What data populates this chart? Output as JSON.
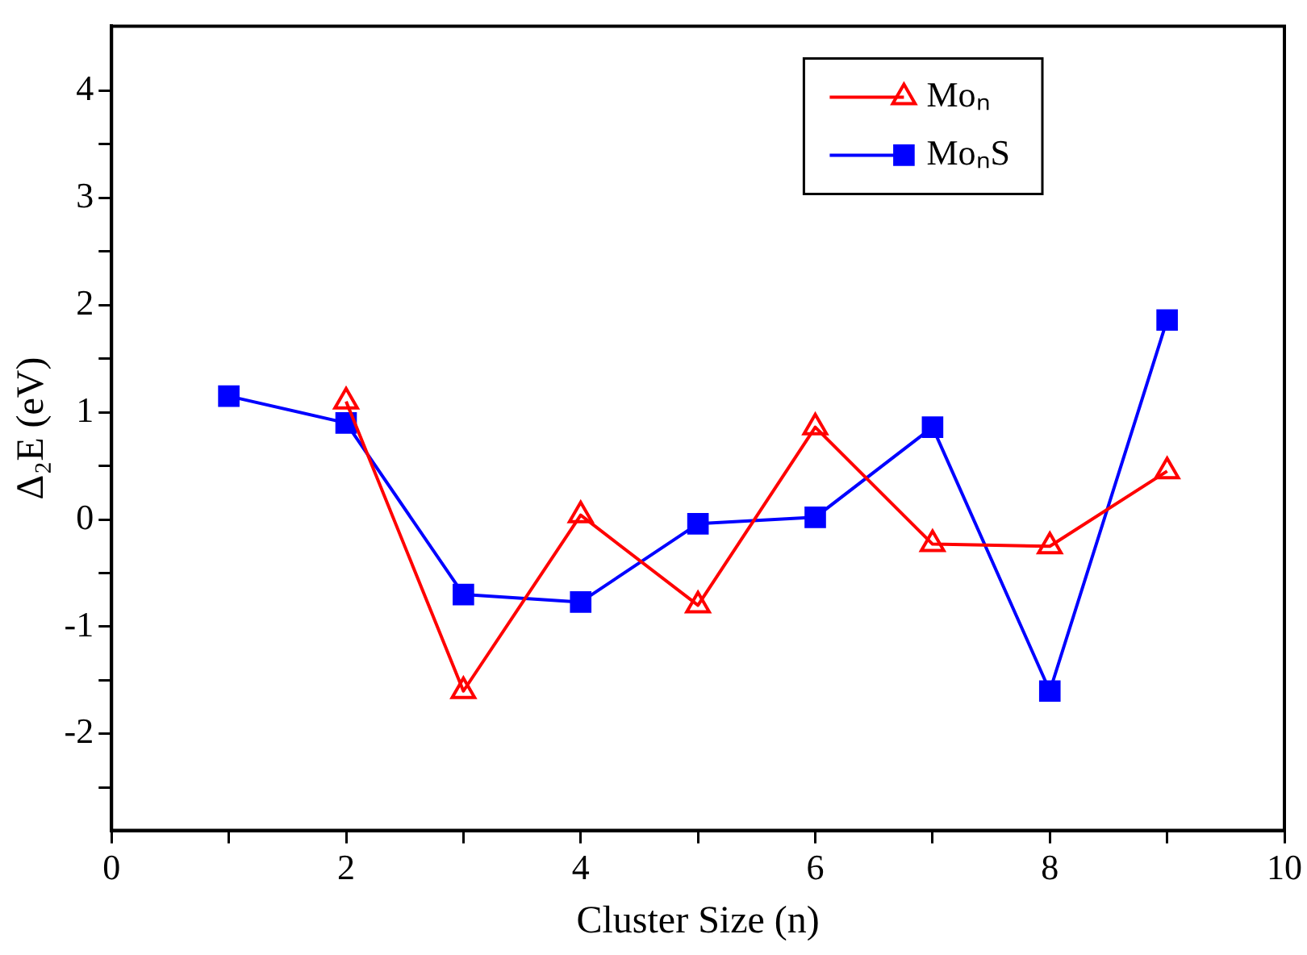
{
  "chart_data": {
    "type": "line",
    "xlabel": "Cluster Size (n)",
    "ylabel": "Δ₂E (eV)",
    "x": [
      1,
      2,
      3,
      4,
      5,
      6,
      7,
      8,
      9
    ],
    "series": [
      {
        "name": "Moₙ",
        "color": "#ff0000",
        "marker": "triangle",
        "values": [
          null,
          1.1,
          -1.6,
          0.04,
          -0.8,
          0.86,
          -0.23,
          -0.25,
          0.45
        ]
      },
      {
        "name": "MoₙS",
        "color": "#0000ff",
        "marker": "square",
        "values": [
          1.15,
          0.9,
          -0.7,
          -0.77,
          -0.04,
          0.02,
          0.86,
          -1.6,
          1.86
        ]
      }
    ],
    "xlim": [
      0,
      10
    ],
    "xticks": [
      0,
      {
        "value": 1,
        "label": null
      },
      2,
      {
        "value": 3,
        "label": null
      },
      4,
      {
        "value": 5,
        "label": null
      },
      6,
      {
        "value": 7,
        "label": null
      },
      8,
      {
        "value": 9,
        "label": null
      },
      10
    ],
    "ylim": [
      -2.9,
      4.6
    ],
    "yticks": [
      {
        "value": -2.5,
        "label": null
      },
      -2,
      {
        "value": -1.5,
        "label": null
      },
      -1,
      {
        "value": -0.5,
        "label": null
      },
      0,
      {
        "value": 0.5,
        "label": null
      },
      1,
      {
        "value": 1.5,
        "label": null
      },
      2,
      {
        "value": 2.5,
        "label": null
      },
      3,
      {
        "value": 3.5,
        "label": null
      },
      4
    ],
    "grid": false,
    "legend": "top right",
    "line_style": "solid"
  }
}
